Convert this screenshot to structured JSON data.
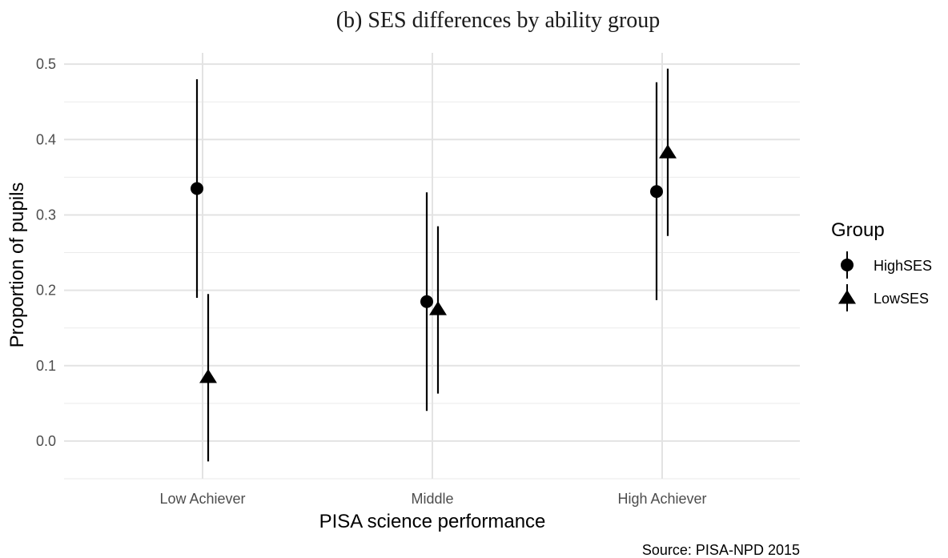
{
  "chart_data": {
    "type": "scatter",
    "title": "(b)  SES differences by ability group",
    "xlabel": "PISA science performance",
    "ylabel": "Proportion of pupils",
    "caption": "Source: PISA-NPD 2015",
    "categories": [
      "Low Achiever",
      "Middle",
      "High Achiever"
    ],
    "y_ticks": [
      "0.0",
      "0.1",
      "0.2",
      "0.3",
      "0.4",
      "0.5"
    ],
    "ylim": [
      -0.05,
      0.515
    ],
    "grid": true,
    "legend": {
      "title": "Group",
      "position": "right"
    },
    "series": [
      {
        "name": "HighSES",
        "marker": "circle",
        "color": "#000000",
        "values": [
          0.335,
          0.185,
          0.331
        ],
        "lower": [
          0.19,
          0.04,
          0.187
        ],
        "upper": [
          0.48,
          0.33,
          0.476
        ]
      },
      {
        "name": "LowSES",
        "marker": "triangle",
        "color": "#000000",
        "values": [
          0.085,
          0.175,
          0.383
        ],
        "lower": [
          -0.027,
          0.063,
          0.272
        ],
        "upper": [
          0.195,
          0.285,
          0.494
        ]
      }
    ]
  }
}
